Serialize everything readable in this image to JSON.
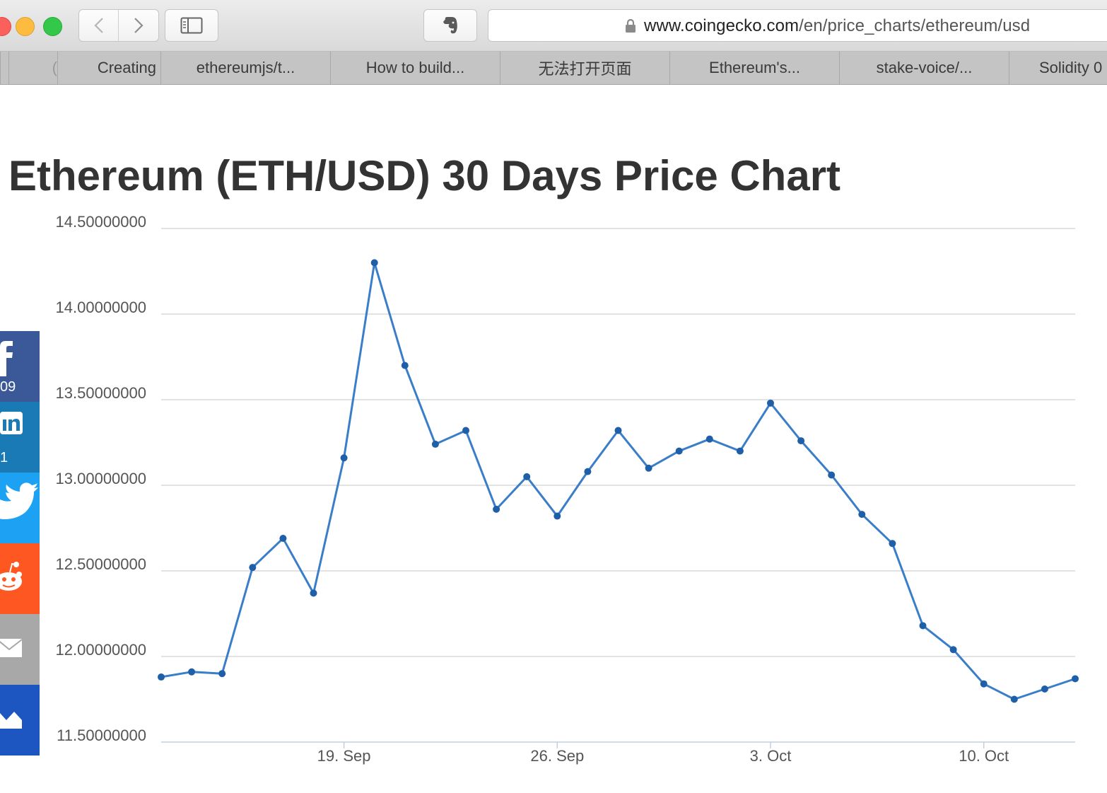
{
  "browser": {
    "url_host": "www.coingecko.com",
    "url_path": "/en/price_charts/ethereum/usd",
    "tabs": [
      {
        "label": "("
      },
      {
        "label": "Creating"
      },
      {
        "label": "ethereumjs/t..."
      },
      {
        "label": "How to build..."
      },
      {
        "label": "无法打开页面"
      },
      {
        "label": "Ethereum's..."
      },
      {
        "label": "stake-voice/..."
      },
      {
        "label": "Solidity 0"
      }
    ]
  },
  "page": {
    "title": "Ethereum (ETH/USD) 30 Days Price Chart"
  },
  "social": {
    "facebook_count": "09",
    "linkedin_count": "1",
    "colors": {
      "facebook": "#3b5998",
      "linkedin": "#1a7ab6",
      "twitter": "#1da1f2",
      "reddit": "#ff5722",
      "email": "#a8a8a8",
      "crown": "#1e56c1"
    }
  },
  "chart_data": {
    "type": "line",
    "title": "",
    "xlabel": "",
    "ylabel": "",
    "ylim": [
      11.5,
      14.5
    ],
    "y_ticks": [
      "14.50000000",
      "14.00000000",
      "13.50000000",
      "13.00000000",
      "12.50000000",
      "12.00000000",
      "11.50000000"
    ],
    "x_ticks": [
      {
        "label": "19. Sep",
        "x": "2016-09-19"
      },
      {
        "label": "26. Sep",
        "x": "2016-09-26"
      },
      {
        "label": "3. Oct",
        "x": "2016-10-03"
      },
      {
        "label": "10. Oct",
        "x": "2016-10-10"
      }
    ],
    "color": "#3a7dc9",
    "marker_color": "#1f5fa8",
    "series": [
      {
        "x": [
          "2016-09-13",
          "2016-09-14",
          "2016-09-15",
          "2016-09-16",
          "2016-09-17",
          "2016-09-18",
          "2016-09-19",
          "2016-09-20",
          "2016-09-21",
          "2016-09-22",
          "2016-09-23",
          "2016-09-24",
          "2016-09-25",
          "2016-09-26",
          "2016-09-27",
          "2016-09-28",
          "2016-09-29",
          "2016-09-30",
          "2016-10-01",
          "2016-10-02",
          "2016-10-03",
          "2016-10-04",
          "2016-10-05",
          "2016-10-06",
          "2016-10-07",
          "2016-10-08",
          "2016-10-09",
          "2016-10-10",
          "2016-10-11",
          "2016-10-12",
          "2016-10-13"
        ],
        "values": [
          11.88,
          11.91,
          11.9,
          12.52,
          12.69,
          12.37,
          13.16,
          14.3,
          13.7,
          13.24,
          13.32,
          12.86,
          13.05,
          12.82,
          13.08,
          13.32,
          13.1,
          13.2,
          13.27,
          13.2,
          13.48,
          13.26,
          13.06,
          12.83,
          12.66,
          12.18,
          12.04,
          11.84,
          11.75,
          11.81,
          11.87
        ]
      }
    ],
    "grid": true
  }
}
